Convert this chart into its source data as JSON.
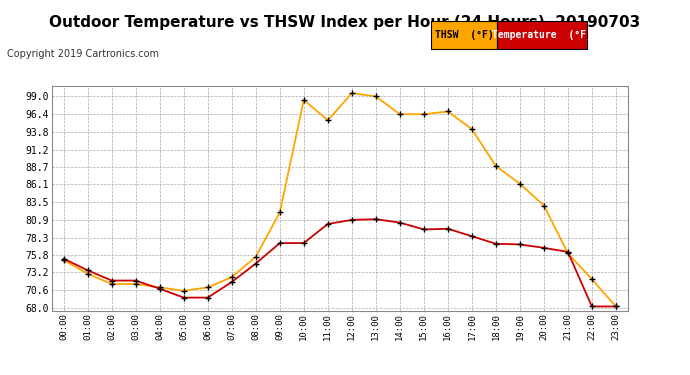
{
  "title": "Outdoor Temperature vs THSW Index per Hour (24 Hours)  20190703",
  "copyright": "Copyright 2019 Cartronics.com",
  "hours": [
    "00:00",
    "01:00",
    "02:00",
    "03:00",
    "04:00",
    "05:00",
    "06:00",
    "07:00",
    "08:00",
    "09:00",
    "10:00",
    "11:00",
    "12:00",
    "13:00",
    "14:00",
    "15:00",
    "16:00",
    "17:00",
    "18:00",
    "19:00",
    "20:00",
    "21:00",
    "22:00",
    "23:00"
  ],
  "thsw": [
    75.0,
    73.0,
    71.5,
    71.5,
    71.0,
    70.5,
    71.0,
    72.5,
    75.5,
    82.0,
    98.5,
    95.5,
    99.5,
    99.0,
    96.4,
    96.4,
    96.8,
    94.2,
    88.8,
    86.2,
    83.0,
    76.0,
    72.2,
    68.2
  ],
  "temp": [
    75.2,
    73.5,
    72.0,
    72.0,
    70.8,
    69.5,
    69.5,
    71.8,
    74.5,
    77.5,
    77.5,
    80.3,
    80.9,
    81.0,
    80.5,
    79.5,
    79.6,
    78.5,
    77.4,
    77.3,
    76.8,
    76.2,
    68.2,
    68.2
  ],
  "thsw_color": "#FFA500",
  "temp_color": "#CC0000",
  "marker_color": "#000000",
  "bg_color": "#ffffff",
  "plot_bg_color": "#ffffff",
  "grid_color": "#aaaaaa",
  "ylim_min": 67.5,
  "ylim_max": 100.5,
  "yticks": [
    68.0,
    70.6,
    73.2,
    75.8,
    78.3,
    80.9,
    83.5,
    86.1,
    88.7,
    91.2,
    93.8,
    96.4,
    99.0
  ],
  "title_fontsize": 11,
  "copyright_fontsize": 7,
  "legend_thsw_label": "THSW  (°F)",
  "legend_temp_label": "Temperature  (°F)",
  "legend_thsw_bg": "#FFA500",
  "legend_temp_bg": "#CC0000"
}
